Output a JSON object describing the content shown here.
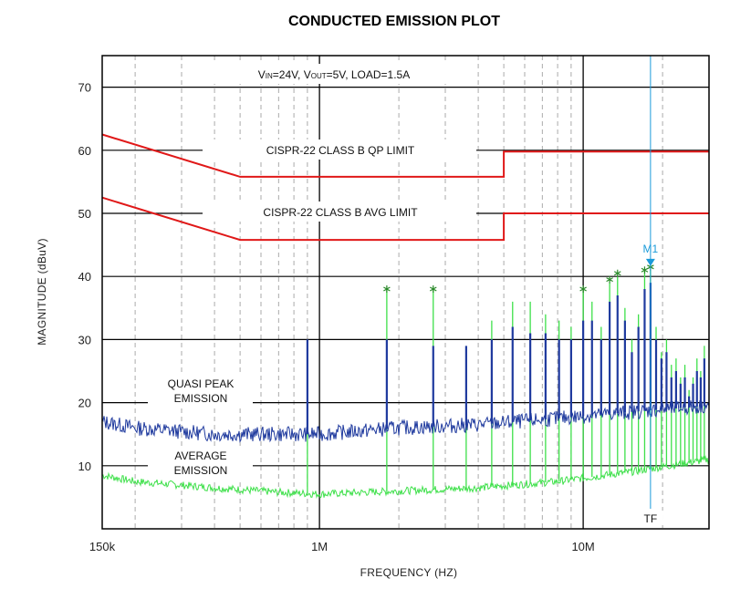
{
  "chart_data": {
    "type": "line",
    "title": "CONDUCTED EMISSION PLOT",
    "xlabel": "FREQUENCY (HZ)",
    "ylabel": "MAGNITUDE (dBuV)",
    "x_scale": "log",
    "xlim": [
      150000,
      30000000
    ],
    "ylim": [
      0,
      75
    ],
    "x_tick_labels": [
      {
        "value": 150000,
        "label": "150k"
      },
      {
        "value": 1000000,
        "label": "1M"
      },
      {
        "value": 10000000,
        "label": "10M"
      }
    ],
    "y_ticks": [
      10,
      20,
      30,
      40,
      50,
      60,
      70
    ],
    "grid": true,
    "conditions_label": "VIN=24V, VOUT=5V, LOAD=1.5A",
    "colors": {
      "limit": "#e01818",
      "quasi_peak": "#1f3a9e",
      "average": "#3ee04a",
      "marker": "#1a9ad9",
      "peak_star": "#2a8a2a"
    },
    "limits": [
      {
        "name": "CISPR-22 CLASS B QP LIMIT",
        "points": [
          [
            150000,
            62.5
          ],
          [
            500000,
            55.8
          ],
          [
            5000000,
            55.8
          ],
          [
            5000000,
            59.8
          ],
          [
            30000000,
            59.8
          ]
        ]
      },
      {
        "name": "CISPR-22 CLASS B AVG LIMIT",
        "points": [
          [
            150000,
            52.5
          ],
          [
            500000,
            45.8
          ],
          [
            5000000,
            45.8
          ],
          [
            5000000,
            50.0
          ],
          [
            30000000,
            50.0
          ]
        ]
      }
    ],
    "series_labels": {
      "quasi_peak": [
        "QUASI PEAK",
        "EMISSION"
      ],
      "average": [
        "AVERAGE",
        "EMISSION"
      ]
    },
    "baseline": {
      "quasi_peak": [
        [
          150000,
          17
        ],
        [
          200000,
          16
        ],
        [
          400000,
          15
        ],
        [
          700000,
          15
        ],
        [
          1000000,
          15
        ],
        [
          2000000,
          16
        ],
        [
          4000000,
          16.5
        ],
        [
          8000000,
          17.5
        ],
        [
          15000000,
          18.5
        ],
        [
          30000000,
          19.5
        ]
      ],
      "average": [
        [
          150000,
          8.5
        ],
        [
          200000,
          7.5
        ],
        [
          400000,
          6.5
        ],
        [
          700000,
          5.8
        ],
        [
          1000000,
          5.5
        ],
        [
          2000000,
          6
        ],
        [
          4000000,
          6.5
        ],
        [
          8000000,
          7.5
        ],
        [
          15000000,
          9
        ],
        [
          30000000,
          11
        ]
      ]
    },
    "spur_peaks": [
      [
        900000,
        28,
        30
      ],
      [
        1800000,
        38,
        30
      ],
      [
        2700000,
        38,
        29
      ],
      [
        3600000,
        28,
        29
      ],
      [
        4500000,
        33,
        30
      ],
      [
        5400000,
        36,
        32
      ],
      [
        6300000,
        36,
        31
      ],
      [
        7200000,
        34,
        31
      ],
      [
        8100000,
        33,
        30
      ],
      [
        9000000,
        32,
        30
      ],
      [
        10000000,
        38,
        33
      ],
      [
        10800000,
        36,
        33
      ],
      [
        11700000,
        32,
        30
      ],
      [
        12600000,
        39,
        36
      ],
      [
        13500000,
        40,
        37
      ],
      [
        14400000,
        35,
        33
      ],
      [
        15300000,
        30,
        28
      ],
      [
        16200000,
        34,
        32
      ],
      [
        17100000,
        41,
        38
      ],
      [
        18000000,
        41,
        39
      ],
      [
        18900000,
        32,
        30
      ],
      [
        19800000,
        28,
        27
      ],
      [
        20700000,
        30,
        28
      ],
      [
        21600000,
        26,
        24
      ],
      [
        22500000,
        27,
        25
      ],
      [
        23400000,
        24,
        23
      ],
      [
        24300000,
        26,
        24
      ],
      [
        25200000,
        22,
        21
      ],
      [
        26100000,
        24,
        23
      ],
      [
        27000000,
        27,
        25
      ],
      [
        27900000,
        25,
        24
      ],
      [
        28800000,
        29,
        27
      ]
    ],
    "peak_markers": [
      [
        1800000,
        38
      ],
      [
        2700000,
        38
      ],
      [
        10000000,
        38
      ],
      [
        12600000,
        39.5
      ],
      [
        13500000,
        40.5
      ],
      [
        17100000,
        41
      ],
      [
        18000000,
        41.5
      ]
    ],
    "marker": {
      "label": "M1",
      "x": 18000000,
      "y": 41.5,
      "bottom_label": "TF"
    }
  }
}
